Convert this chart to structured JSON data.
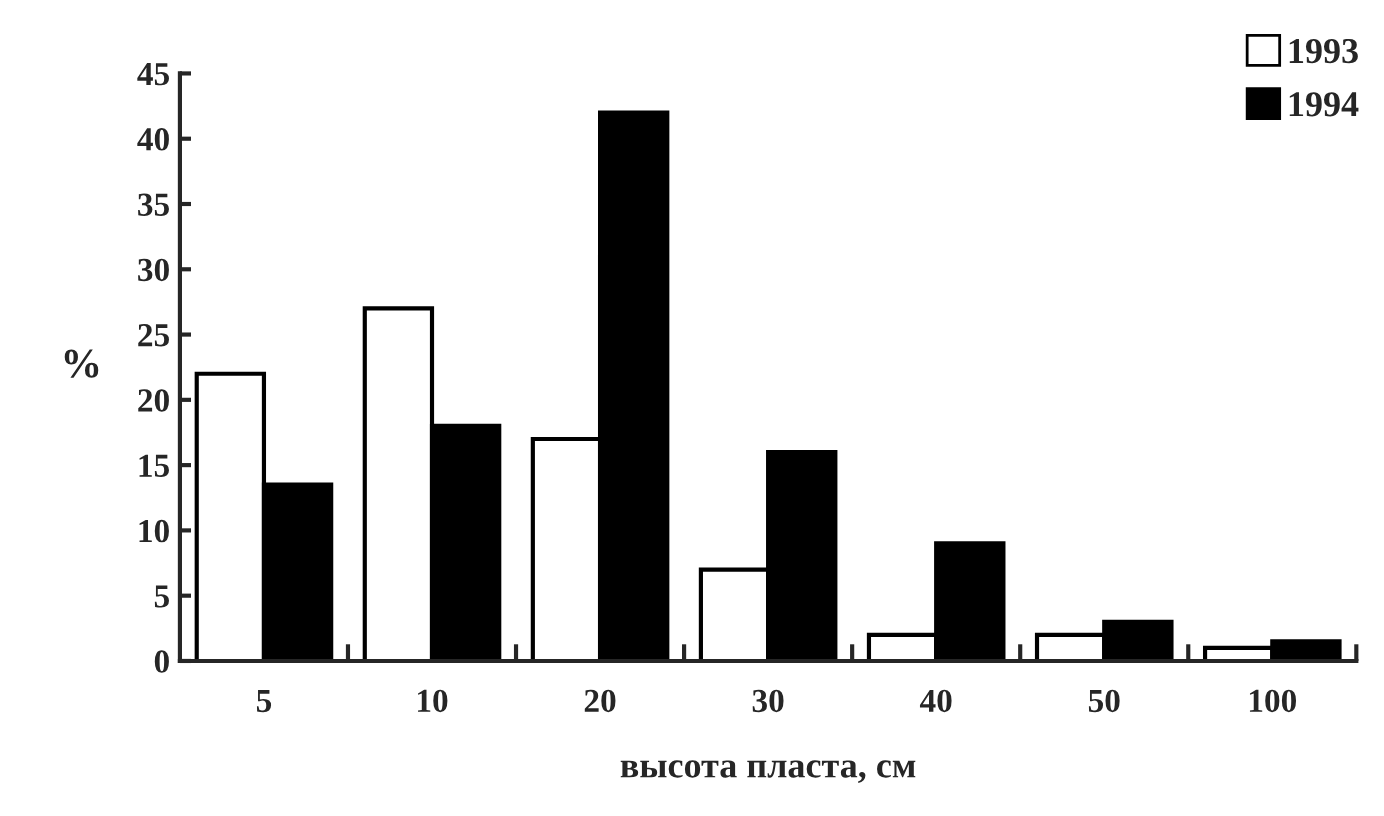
{
  "chart_data": {
    "type": "bar",
    "xlabel": "высота пласта, см",
    "ylabel": "%",
    "categories": [
      "5",
      "10",
      "20",
      "30",
      "40",
      "50",
      "100"
    ],
    "series": [
      {
        "name": "1993",
        "color": "#ffffff",
        "values": [
          22,
          27,
          17,
          7,
          2,
          2,
          1
        ]
      },
      {
        "name": "1994",
        "color": "#000000",
        "values": [
          13.5,
          18,
          42,
          16,
          9,
          3,
          1.5
        ]
      }
    ],
    "ylim": [
      0,
      45
    ],
    "yticks": [
      0,
      5,
      10,
      15,
      20,
      25,
      30,
      35,
      40,
      45
    ],
    "grid": false,
    "legend": "top right"
  }
}
